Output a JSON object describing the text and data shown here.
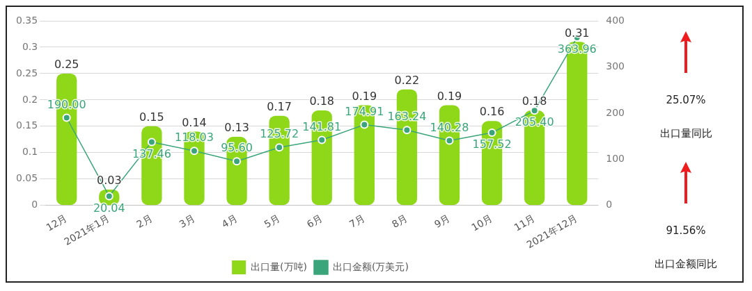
{
  "chart_data": {
    "type": "bar",
    "categories": [
      "12月",
      "2021年1月",
      "2月",
      "3月",
      "4月",
      "5月",
      "6月",
      "7月",
      "8月",
      "9月",
      "10月",
      "11月",
      "2021年12月"
    ],
    "series": [
      {
        "name": "出口量(万吨)",
        "color": "#8fd819",
        "values": [
          0.25,
          0.03,
          0.15,
          0.14,
          0.13,
          0.17,
          0.18,
          0.19,
          0.22,
          0.19,
          0.16,
          0.18,
          0.31
        ],
        "value_labels": [
          "0.25",
          "0.03",
          "0.15",
          "0.14",
          "0.13",
          "0.17",
          "0.18",
          "0.19",
          "0.22",
          "0.19",
          "0.16",
          "0.18",
          "0.31"
        ]
      },
      {
        "name": "出口金额(万美元)",
        "type": "line",
        "axis": "y2",
        "color": "#3aa57a",
        "marker": "circle",
        "values": [
          190.0,
          20.04,
          137.46,
          118.03,
          95.6,
          125.72,
          141.81,
          174.91,
          163.24,
          140.28,
          157.52,
          205.4,
          363.96
        ],
        "value_labels": [
          "190.00",
          "20.04",
          "137.46",
          "118.03",
          "95.60",
          "125.72",
          "141.81",
          "174.91",
          "163.24",
          "140.28",
          "157.52",
          "205.40",
          "363.96"
        ]
      }
    ],
    "ylim": [
      0,
      0.35
    ],
    "yticks": [
      0,
      0.05,
      0.1,
      0.15,
      0.2,
      0.25,
      0.3,
      0.35
    ],
    "y2lim": [
      0,
      400
    ],
    "y2ticks": [
      0,
      100,
      200,
      300,
      400
    ],
    "grid": "y",
    "legend": "bottom",
    "annotations": [
      "25.07%",
      "出口量同比",
      "91.56%",
      "出口金额同比"
    ]
  }
}
